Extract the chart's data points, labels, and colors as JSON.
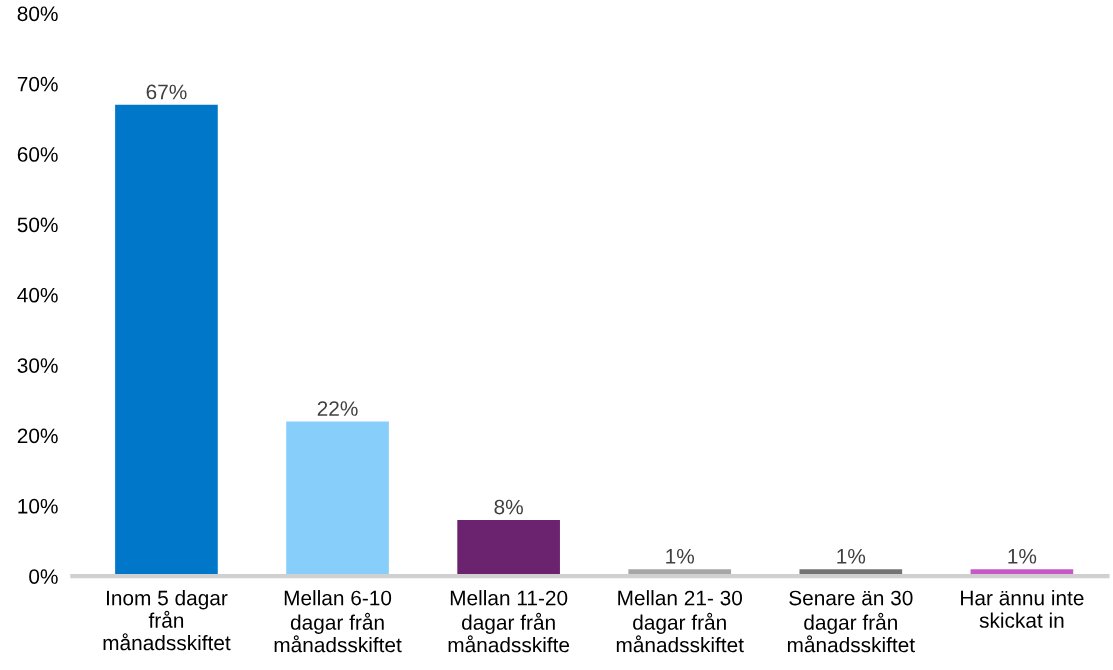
{
  "chart_data": {
    "type": "bar",
    "categories": [
      "Inom 5 dagar\nfrån\nmånadsskiftet",
      "Mellan 6-10\ndagar från\nmånadsskiftet",
      "Mellan 11-20\ndagar från\nmånadsskifte",
      "Mellan 21- 30\ndagar från\nmånadsskiftet",
      "Senare än 30\ndagar från\nmånadsskiftet",
      "Har ännu inte\nskickat in"
    ],
    "values": [
      67,
      22,
      8,
      1,
      1,
      1
    ],
    "value_labels": [
      "67%",
      "22%",
      "8%",
      "1%",
      "1%",
      "1%"
    ],
    "colors": [
      "#0077c8",
      "#87cefa",
      "#6b2370",
      "#a6a6a6",
      "#747474",
      "#c658c8"
    ],
    "ylim": [
      0,
      80
    ],
    "yticks": [
      {
        "value": 0,
        "label": "0%"
      },
      {
        "value": 10,
        "label": "10%"
      },
      {
        "value": 20,
        "label": "20%"
      },
      {
        "value": 30,
        "label": "30%"
      },
      {
        "value": 40,
        "label": "40%"
      },
      {
        "value": 50,
        "label": "50%"
      },
      {
        "value": 60,
        "label": "60%"
      },
      {
        "value": 70,
        "label": "70%"
      },
      {
        "value": 80,
        "label": "80%"
      }
    ],
    "grid": false,
    "legend": false
  }
}
